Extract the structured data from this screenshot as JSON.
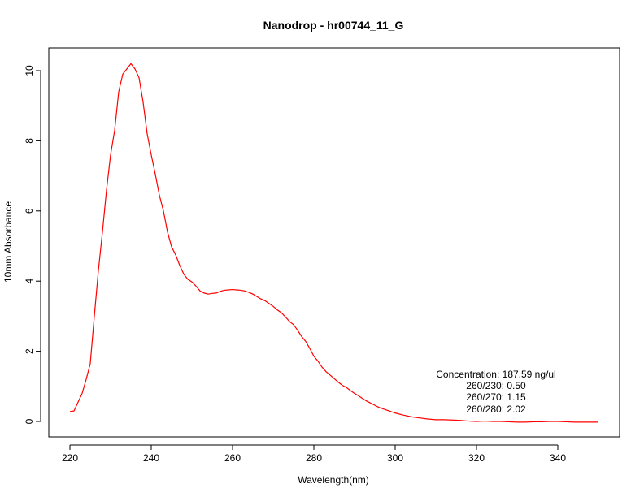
{
  "chart_data": {
    "type": "line",
    "title": "Nanodrop - hr00744_11_G",
    "xlabel": "Wavelength(nm)",
    "ylabel": "10mm Absorbance",
    "xlim": [
      220,
      350
    ],
    "ylim": [
      -0.3,
      10.5
    ],
    "xticks": [
      220,
      240,
      260,
      280,
      300,
      320,
      340
    ],
    "yticks": [
      0,
      2,
      4,
      6,
      8,
      10
    ],
    "grid": false,
    "line_color": "#ff0000",
    "series": [
      {
        "x": [
          220,
          221,
          222,
          223,
          224,
          225,
          226,
          227,
          228,
          229,
          230,
          231,
          232,
          233,
          234,
          235,
          236,
          237,
          238,
          239,
          240,
          241,
          242,
          243,
          244,
          245,
          246,
          247,
          248,
          249,
          250,
          251,
          252,
          253,
          254,
          255,
          256,
          257,
          258,
          259,
          260,
          261,
          262,
          263,
          264,
          265,
          266,
          267,
          268,
          269,
          270,
          271,
          272,
          273,
          274,
          275,
          276,
          277,
          278,
          279,
          280,
          281,
          282,
          283,
          284,
          285,
          286,
          287,
          288,
          289,
          290,
          291,
          292,
          293,
          294,
          295,
          296,
          297,
          298,
          299,
          300,
          302,
          304,
          306,
          308,
          310,
          312,
          314,
          316,
          318,
          320,
          322,
          324,
          326,
          328,
          330,
          332,
          334,
          336,
          338,
          340,
          342,
          344,
          346,
          348,
          350
        ],
        "y": [
          0.28,
          0.3,
          0.55,
          0.8,
          1.2,
          1.65,
          3.0,
          4.3,
          5.4,
          6.6,
          7.6,
          8.3,
          9.4,
          9.9,
          10.05,
          10.2,
          10.05,
          9.8,
          9.1,
          8.2,
          7.6,
          7.05,
          6.45,
          6.0,
          5.4,
          4.98,
          4.75,
          4.45,
          4.2,
          4.05,
          3.98,
          3.86,
          3.72,
          3.66,
          3.63,
          3.65,
          3.66,
          3.71,
          3.74,
          3.75,
          3.76,
          3.75,
          3.74,
          3.72,
          3.68,
          3.63,
          3.56,
          3.49,
          3.44,
          3.36,
          3.28,
          3.18,
          3.1,
          2.98,
          2.85,
          2.76,
          2.6,
          2.42,
          2.28,
          2.08,
          1.86,
          1.72,
          1.55,
          1.42,
          1.32,
          1.22,
          1.12,
          1.03,
          0.97,
          0.88,
          0.8,
          0.73,
          0.65,
          0.58,
          0.52,
          0.46,
          0.4,
          0.36,
          0.32,
          0.28,
          0.24,
          0.18,
          0.13,
          0.1,
          0.07,
          0.05,
          0.05,
          0.04,
          0.03,
          0.01,
          0.0,
          0.01,
          0.0,
          0.0,
          -0.01,
          -0.02,
          -0.02,
          -0.01,
          -0.01,
          0.0,
          0.0,
          -0.01,
          -0.02,
          -0.02,
          -0.02,
          -0.02
        ]
      }
    ],
    "annotations": [
      "Concentration: 187.59 ng/ul",
      "260/230: 0.50",
      "260/270: 1.15",
      "260/280: 2.02"
    ]
  }
}
